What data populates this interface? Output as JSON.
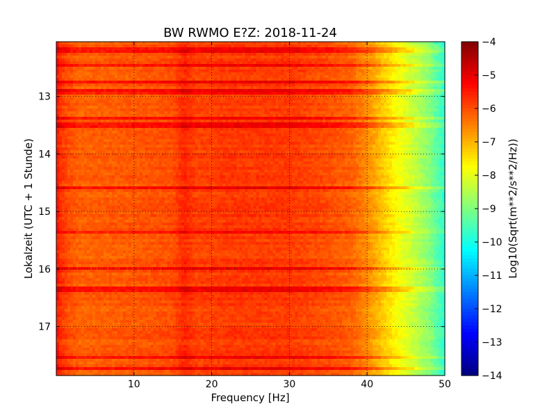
{
  "chart_data": {
    "type": "heatmap",
    "title": "BW RWMO E?Z: 2018-11-24",
    "xlabel": "Frequency [Hz]",
    "ylabel": "Lokalzeit (UTC + 1 Stunde)",
    "xlim": [
      0,
      50
    ],
    "ylim": [
      17.85,
      12.05
    ],
    "x_ticks": [
      10,
      20,
      30,
      40,
      50
    ],
    "x_tick_labels": [
      "10",
      "20",
      "30",
      "40",
      "50"
    ],
    "y_ticks": [
      13,
      14,
      15,
      16,
      17
    ],
    "y_tick_labels": [
      "13",
      "14",
      "15",
      "16",
      "17"
    ],
    "grid": true,
    "colorbar": {
      "label": "Log10(Sqrt(m**2/s**2/Hz))",
      "min": -14,
      "max": -4,
      "ticks": [
        -4,
        -5,
        -6,
        -7,
        -8,
        -9,
        -10,
        -11,
        -12,
        -13,
        -14
      ],
      "tick_labels": [
        "−4",
        "−5",
        "−6",
        "−7",
        "−8",
        "−9",
        "−10",
        "−11",
        "−12",
        "−13",
        "−14"
      ],
      "colormap": "jet"
    },
    "frequency_profile": {
      "freq_hz": [
        0,
        0.5,
        1.5,
        3,
        10,
        15,
        16.5,
        18,
        22,
        30,
        35,
        38,
        40,
        42,
        44,
        46,
        48,
        50
      ],
      "log10_amplitude": [
        -5.4,
        -5.7,
        -6.0,
        -6.2,
        -6.1,
        -6.0,
        -5.6,
        -5.9,
        -5.8,
        -5.8,
        -6.0,
        -6.2,
        -6.6,
        -7.2,
        -7.8,
        -8.3,
        -8.9,
        -9.8
      ]
    },
    "high_noise_times": [
      12.2,
      12.45,
      12.75,
      12.92,
      13.38,
      13.5,
      14.6,
      15.35,
      15.98,
      16.35,
      17.53,
      17.72
    ]
  }
}
